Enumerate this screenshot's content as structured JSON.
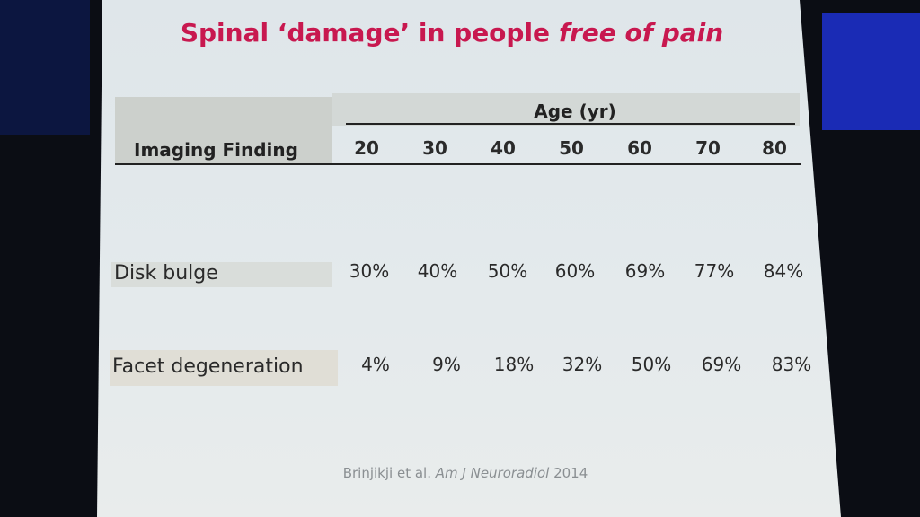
{
  "title": {
    "main": "Spinal ‘damage’ in people",
    "emphasis": "free of pain"
  },
  "table": {
    "row_header": "Imaging Finding",
    "group_header": "Age (yr)",
    "ages": [
      "20",
      "30",
      "40",
      "50",
      "60",
      "70",
      "80"
    ],
    "rows": [
      {
        "label": "Disk bulge",
        "values": [
          "30%",
          "40%",
          "50%",
          "60%",
          "69%",
          "77%",
          "84%"
        ]
      },
      {
        "label": "Facet degeneration",
        "values": [
          "4%",
          "9%",
          "18%",
          "32%",
          "50%",
          "69%",
          "83%"
        ]
      }
    ]
  },
  "citation": {
    "authors": "Brinjikji et al.",
    "journal": "Am J Neuroradiol",
    "year": "2014"
  }
}
